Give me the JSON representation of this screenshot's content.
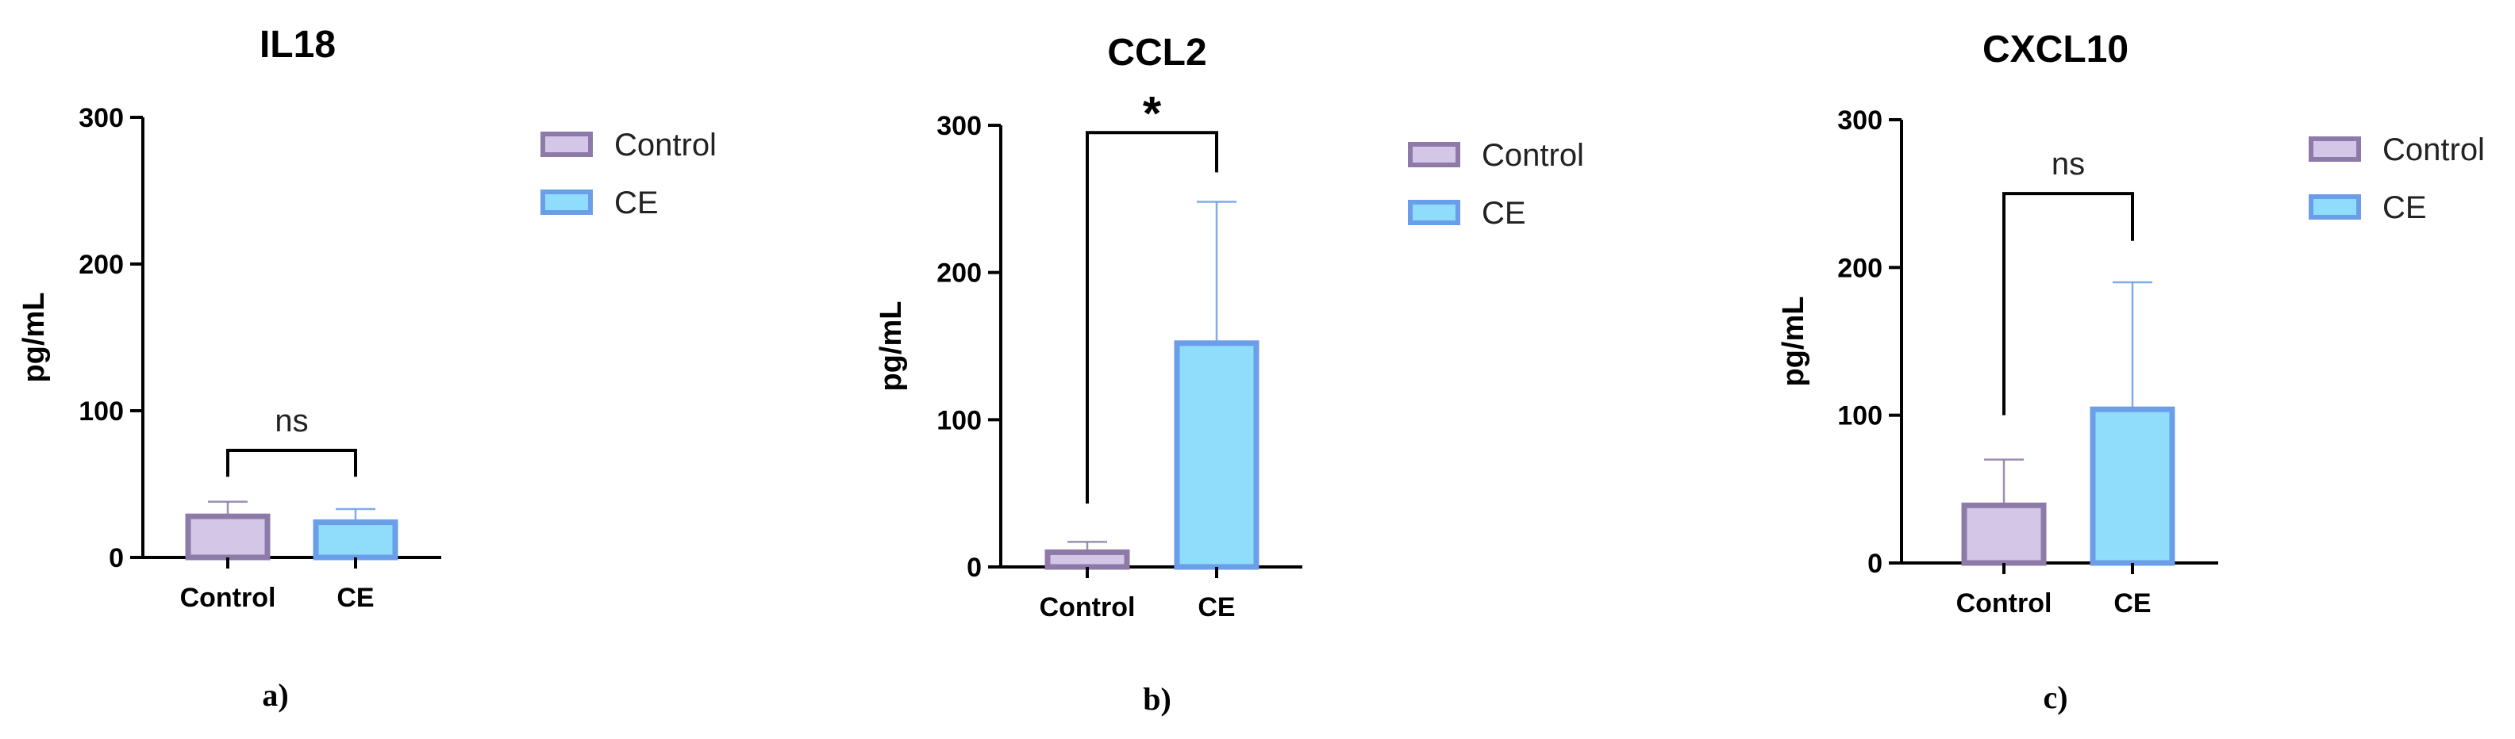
{
  "chart_data": [
    {
      "type": "bar",
      "title": "IL18",
      "ylabel": "pg/mL",
      "xlabel": "",
      "ylim": [
        0,
        300
      ],
      "yticks": [
        0,
        100,
        200,
        300
      ],
      "categories": [
        "Control",
        "CE"
      ],
      "values": [
        28,
        24
      ],
      "errors": [
        10,
        9
      ],
      "significance": "ns",
      "legend": [
        "Control",
        "CE"
      ],
      "legend_position": "right",
      "panel_label": "a)"
    },
    {
      "type": "bar",
      "title": "CCL2",
      "ylabel": "pg/mL",
      "xlabel": "",
      "ylim": [
        0,
        300
      ],
      "yticks": [
        0,
        100,
        200,
        300
      ],
      "categories": [
        "Control",
        "CE"
      ],
      "values": [
        10,
        152
      ],
      "errors": [
        7,
        96
      ],
      "significance": "*",
      "legend": [
        "Control",
        "CE"
      ],
      "legend_position": "right",
      "panel_label": "b)"
    },
    {
      "type": "bar",
      "title": "CXCL10",
      "ylabel": "pg/mL",
      "xlabel": "",
      "ylim": [
        0,
        300
      ],
      "yticks": [
        0,
        100,
        200,
        300
      ],
      "categories": [
        "Control",
        "CE"
      ],
      "values": [
        39,
        104
      ],
      "errors": [
        31,
        86
      ],
      "significance": "ns",
      "legend": [
        "Control",
        "CE"
      ],
      "legend_position": "right",
      "panel_label": "c)"
    }
  ],
  "colors": {
    "control_fill": "#d3c6e6",
    "control_stroke": "#8e7aa8",
    "ce_fill": "#8fdcfb",
    "ce_stroke": "#6b9ee8",
    "axis": "#000000"
  }
}
